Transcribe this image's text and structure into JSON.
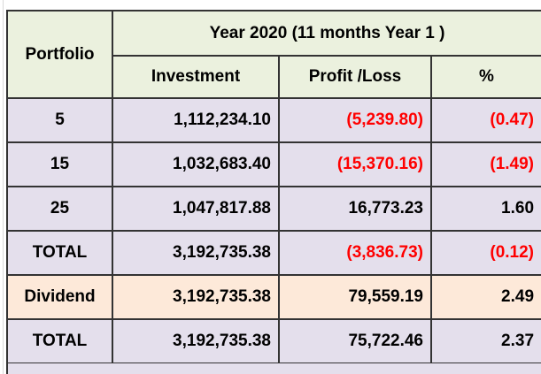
{
  "header": {
    "portfolio_label": "Portfolio",
    "year_title": "Year  2020  (11 months Year 1 )",
    "col_investment": "Investment",
    "col_profit_loss": "Profit /Loss",
    "col_percent": "%"
  },
  "rows": [
    {
      "portfolio": "5",
      "investment": "1,112,234.10",
      "profit_loss": "(5,239.80)",
      "percent": "(0.47)",
      "negative": true
    },
    {
      "portfolio": "15",
      "investment": "1,032,683.40",
      "profit_loss": "(15,370.16)",
      "percent": "(1.49)",
      "negative": true
    },
    {
      "portfolio": "25",
      "investment": "1,047,817.88",
      "profit_loss": "16,773.23",
      "percent": "1.60",
      "negative": false
    },
    {
      "portfolio": "TOTAL",
      "investment": "3,192,735.38",
      "profit_loss": "(3,836.73)",
      "percent": "(0.12)",
      "negative": true
    },
    {
      "portfolio": "Dividend",
      "investment": "3,192,735.38",
      "profit_loss": "79,559.19",
      "percent": "2.49",
      "negative": false
    },
    {
      "portfolio": "TOTAL",
      "investment": "3,192,735.38",
      "profit_loss": "75,722.46",
      "percent": "2.37",
      "negative": false
    }
  ],
  "colors": {
    "header_bg": "#ebf1de",
    "row_bg": "#e4dfec",
    "dividend_bg": "#fde9d9",
    "negative_text": "#ff0000",
    "border": "#333333"
  }
}
